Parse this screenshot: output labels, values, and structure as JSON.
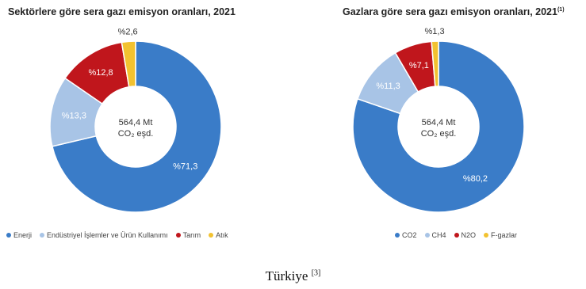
{
  "colors": {
    "energy": "#3a7cc8",
    "industry": "#a8c4e6",
    "agri": "#c0161c",
    "waste": "#f2c230",
    "center_text": "#333333"
  },
  "caption": {
    "text": "Türkiye",
    "ref": "[3]"
  },
  "chart_data": [
    {
      "type": "pie",
      "donut": true,
      "title": "Sektörlere göre sera gazı emisyon oranları, 2021",
      "title_sup": "",
      "center_line1": "564,4 Mt",
      "center_line2": "CO₂ eşd.",
      "legend_position": "bottom-left",
      "slices": [
        {
          "name": "Enerji",
          "value": 71.3,
          "label": "%71,3",
          "color": "#3a7cc8",
          "label_color": "#ffffff"
        },
        {
          "name": "Endüstriyel İşlemler ve Ürün Kullanımı",
          "value": 13.3,
          "label": "%13,3",
          "color": "#a8c4e6",
          "label_color": "#ffffff"
        },
        {
          "name": "Tarım",
          "value": 12.8,
          "label": "%12,8",
          "color": "#c0161c",
          "label_color": "#ffffff"
        },
        {
          "name": "Atık",
          "value": 2.6,
          "label": "%2,6",
          "color": "#f2c230",
          "label_color": "#333333"
        }
      ]
    },
    {
      "type": "pie",
      "donut": true,
      "title": "Gazlara göre sera gazı emisyon oranları, 2021",
      "title_sup": "(1)",
      "center_line1": "564,4 Mt",
      "center_line2": "CO₂ eşd.",
      "legend_position": "bottom-center",
      "slices": [
        {
          "name": "CO2",
          "value": 80.2,
          "label": "%80,2",
          "color": "#3a7cc8",
          "label_color": "#ffffff"
        },
        {
          "name": "CH4",
          "value": 11.3,
          "label": "%11,3",
          "color": "#a8c4e6",
          "label_color": "#ffffff"
        },
        {
          "name": "N2O",
          "value": 7.1,
          "label": "%7,1",
          "color": "#c0161c",
          "label_color": "#ffffff"
        },
        {
          "name": "F-gazlar",
          "value": 1.3,
          "label": "%1,3",
          "color": "#f2c230",
          "label_color": "#333333"
        }
      ]
    }
  ]
}
